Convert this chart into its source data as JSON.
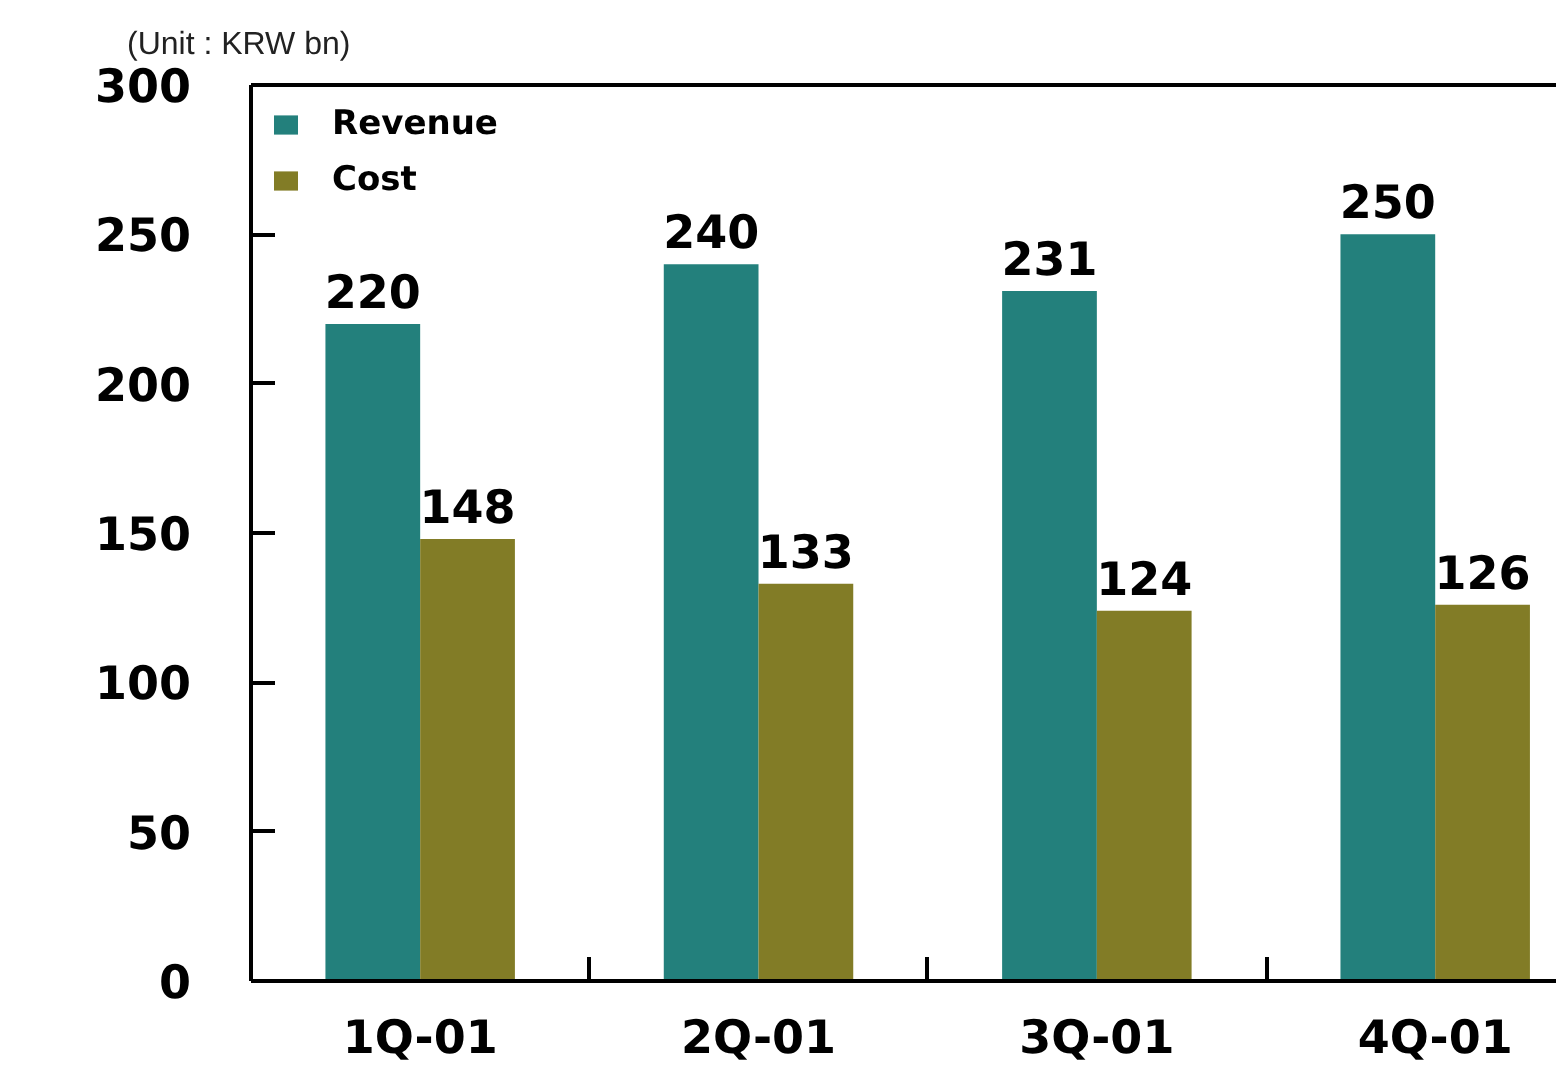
{
  "chart_data": {
    "type": "bar",
    "annotations": [
      "(Unit : KRW bn)"
    ],
    "categories": [
      "1Q-01",
      "2Q-01",
      "3Q-01",
      "4Q-01"
    ],
    "series": [
      {
        "name": "Revenue",
        "color": "#23807c",
        "values": [
          220,
          240,
          231,
          250
        ]
      },
      {
        "name": "Cost",
        "color": "#827c26",
        "values": [
          148,
          133,
          124,
          126
        ]
      }
    ],
    "ylim": [
      0,
      300
    ],
    "yticks": [
      0,
      50,
      100,
      150,
      200,
      250,
      300
    ],
    "data_labels": true,
    "legend": "top left",
    "grid": false
  }
}
